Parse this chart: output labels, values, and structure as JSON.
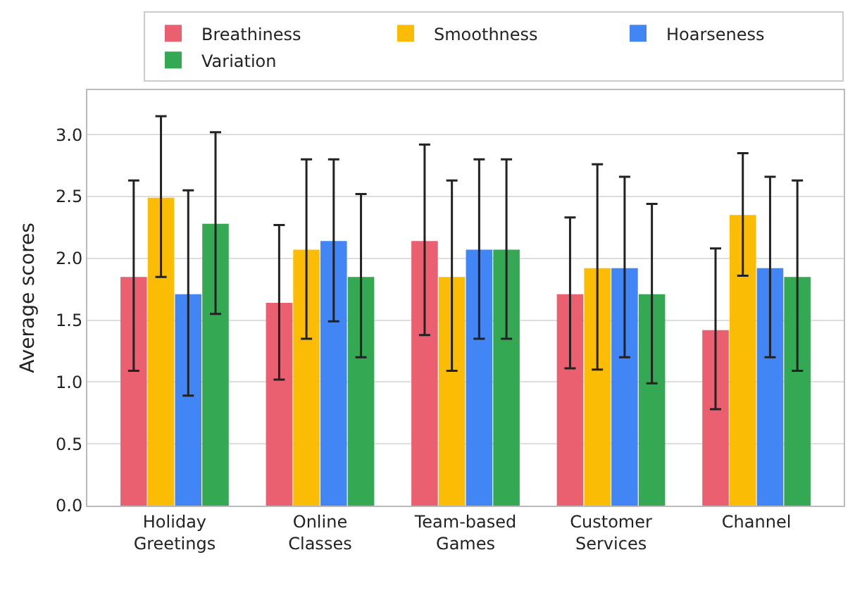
{
  "chart_data": {
    "type": "bar",
    "ylabel": "Average scores",
    "categories": [
      "Holiday Greetings",
      "Online Classes",
      "Team-based Games",
      "Customer Services",
      "Channel"
    ],
    "series": [
      {
        "name": "Breathiness",
        "color": "#ea6070",
        "values": [
          1.85,
          1.64,
          2.14,
          1.71,
          1.42
        ],
        "errors": [
          [
            1.09,
            2.63
          ],
          [
            1.02,
            2.27
          ],
          [
            1.38,
            2.92
          ],
          [
            1.11,
            2.33
          ],
          [
            0.78,
            2.08
          ]
        ]
      },
      {
        "name": "Smoothness",
        "color": "#fbbc05",
        "values": [
          2.49,
          2.07,
          1.85,
          1.92,
          2.35
        ],
        "errors": [
          [
            1.85,
            3.15
          ],
          [
            1.35,
            2.8
          ],
          [
            1.09,
            2.63
          ],
          [
            1.1,
            2.76
          ],
          [
            1.86,
            2.85
          ]
        ]
      },
      {
        "name": "Hoarseness",
        "color": "#4285f4",
        "values": [
          1.71,
          2.14,
          2.07,
          1.92,
          1.92
        ],
        "errors": [
          [
            0.89,
            2.55
          ],
          [
            1.49,
            2.8
          ],
          [
            1.35,
            2.8
          ],
          [
            1.2,
            2.66
          ],
          [
            1.2,
            2.66
          ]
        ]
      },
      {
        "name": "Variation",
        "color": "#34a853",
        "values": [
          2.28,
          1.85,
          2.07,
          1.71,
          1.85
        ],
        "errors": [
          [
            1.55,
            3.02
          ],
          [
            1.2,
            2.52
          ],
          [
            1.35,
            2.8
          ],
          [
            0.99,
            2.44
          ],
          [
            1.09,
            2.63
          ]
        ]
      }
    ],
    "ylim": [
      0,
      3.36
    ],
    "yticks": [
      {
        "value": 0,
        "label": "0.0"
      },
      {
        "value": 0.5,
        "label": "0.5"
      },
      {
        "value": 1,
        "label": "1.0"
      },
      {
        "value": 1.5,
        "label": "1.5"
      },
      {
        "value": 2,
        "label": "2.0"
      },
      {
        "value": 2.5,
        "label": "2.5"
      },
      {
        "value": 3,
        "label": "3.0"
      }
    ],
    "grid": "y",
    "legend": "top right"
  }
}
